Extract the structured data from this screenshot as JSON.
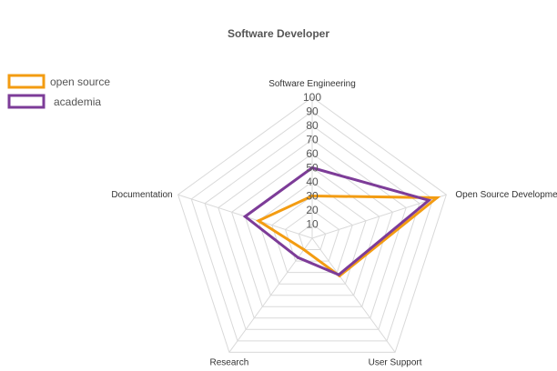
{
  "chart_data": {
    "type": "radar",
    "title": "Software Developer",
    "axes": [
      "Software Engineering",
      "Open Source Development",
      "User Support",
      "Research",
      "Documentation"
    ],
    "r_range": [
      0,
      100
    ],
    "ticks": [
      "10",
      "20",
      "30",
      "40",
      "50",
      "60",
      "70",
      "80",
      "90",
      "100"
    ],
    "grid": true,
    "legend": "top-left",
    "series": [
      {
        "name": "open source",
        "values": [
          30,
          93,
          33,
          10,
          40
        ],
        "color": "#f39c12"
      },
      {
        "name": "academia",
        "values": [
          50,
          87,
          32,
          17,
          50
        ],
        "color": "#7d3c98"
      }
    ]
  }
}
